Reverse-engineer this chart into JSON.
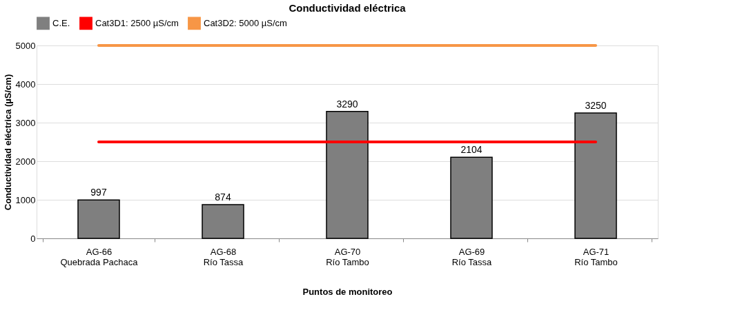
{
  "chart_data": {
    "type": "bar",
    "title": "Conductividad eléctrica",
    "xlabel": "Puntos de monitoreo",
    "ylabel": "Conductividad eléctrica (µS/cm)",
    "categories": [
      "AG-66\nQuebrada Pachaca",
      "AG-68\nRío Tassa",
      "AG-70\nRío Tambo",
      "AG-69\nRío Tassa",
      "AG-71\nRío Tambo"
    ],
    "series": [
      {
        "name": "C.E.",
        "color": "#7f7f7f",
        "values": [
          997,
          874,
          3290,
          2104,
          3250
        ],
        "value_labels": [
          "997",
          "874",
          "3290",
          "2104",
          "3250"
        ]
      },
      {
        "name": "Cat3D1: 2500 µS/cm",
        "type": "line",
        "color": "#ff0000",
        "values": [
          2500,
          2500,
          2500,
          2500,
          2500
        ]
      },
      {
        "name": "Cat3D2: 5000 µS/cm",
        "type": "line",
        "color": "#f79646",
        "values": [
          5000,
          5000,
          5000,
          5000,
          5000
        ]
      }
    ],
    "ylim": [
      0,
      5000
    ],
    "yticks": [
      0,
      1000,
      2000,
      3000,
      4000,
      5000
    ],
    "grid": "y",
    "legend": "top"
  }
}
